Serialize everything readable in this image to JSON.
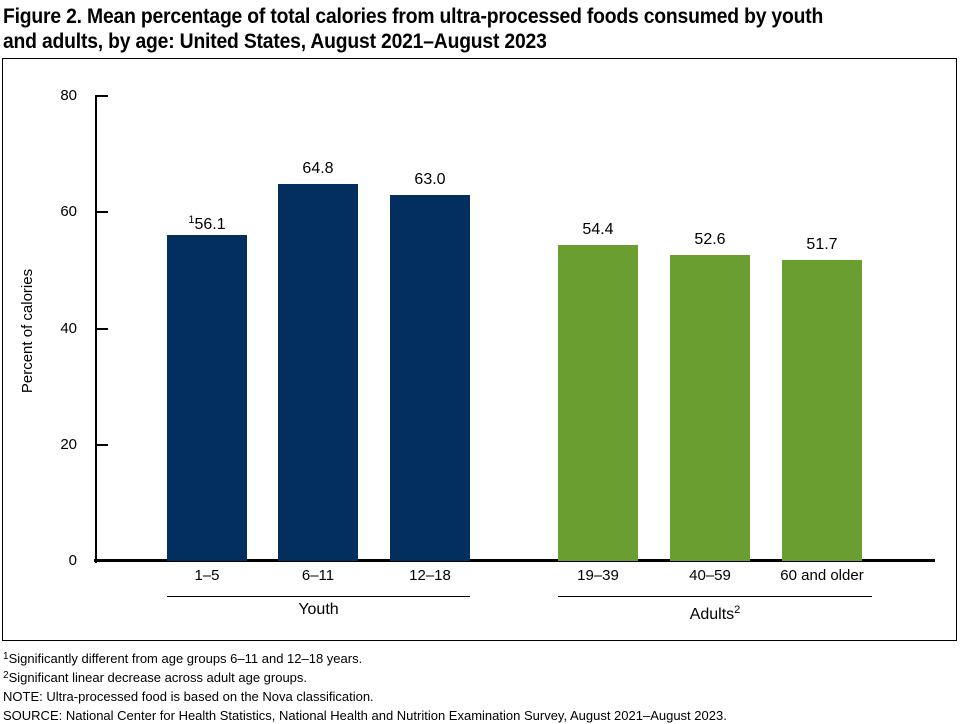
{
  "title_lines": [
    "Figure 2. Mean percentage of total calories from ultra-processed foods consumed by youth",
    "and adults, by age: United States, August 2021–August 2023"
  ],
  "chart_data": {
    "type": "bar",
    "title": "Figure 2. Mean percentage of total calories from ultra-processed foods consumed by youth and adults, by age: United States, August 2021–August 2023",
    "ylabel": "Percent of calories",
    "xlabel": "",
    "ylim": [
      0,
      80
    ],
    "yticks": [
      0,
      20,
      40,
      60,
      80
    ],
    "grid": false,
    "legend": "none",
    "categories": [
      "1–5",
      "6–11",
      "12–18",
      "19–39",
      "40–59",
      "60 and older"
    ],
    "groups": [
      {
        "label": "Youth",
        "label_sup": "",
        "color": "#032f5e",
        "bars": [
          {
            "category": "1–5",
            "value": 56.1,
            "label": "56.1",
            "label_sup": "1"
          },
          {
            "category": "6–11",
            "value": 64.8,
            "label": "64.8",
            "label_sup": ""
          },
          {
            "category": "12–18",
            "value": 63.0,
            "label": "63.0",
            "label_sup": ""
          }
        ]
      },
      {
        "label": "Adults",
        "label_sup": "2",
        "color": "#6a9e31",
        "bars": [
          {
            "category": "19–39",
            "value": 54.4,
            "label": "54.4",
            "label_sup": ""
          },
          {
            "category": "40–59",
            "value": 52.6,
            "label": "52.6",
            "label_sup": ""
          },
          {
            "category": "60 and older",
            "value": 51.7,
            "label": "51.7",
            "label_sup": ""
          }
        ]
      }
    ]
  },
  "footnotes": [
    {
      "sup": "1",
      "text": "Significantly different from age groups 6–11 and 12–18 years."
    },
    {
      "sup": "2",
      "text": "Significant linear decrease across adult age groups."
    },
    {
      "sup": "",
      "text": "NOTE: Ultra-processed food is based on the Nova classification."
    },
    {
      "sup": "",
      "text": "SOURCE: National Center for Health Statistics, National Health and Nutrition Examination Survey, August 2021–August 2023."
    }
  ]
}
